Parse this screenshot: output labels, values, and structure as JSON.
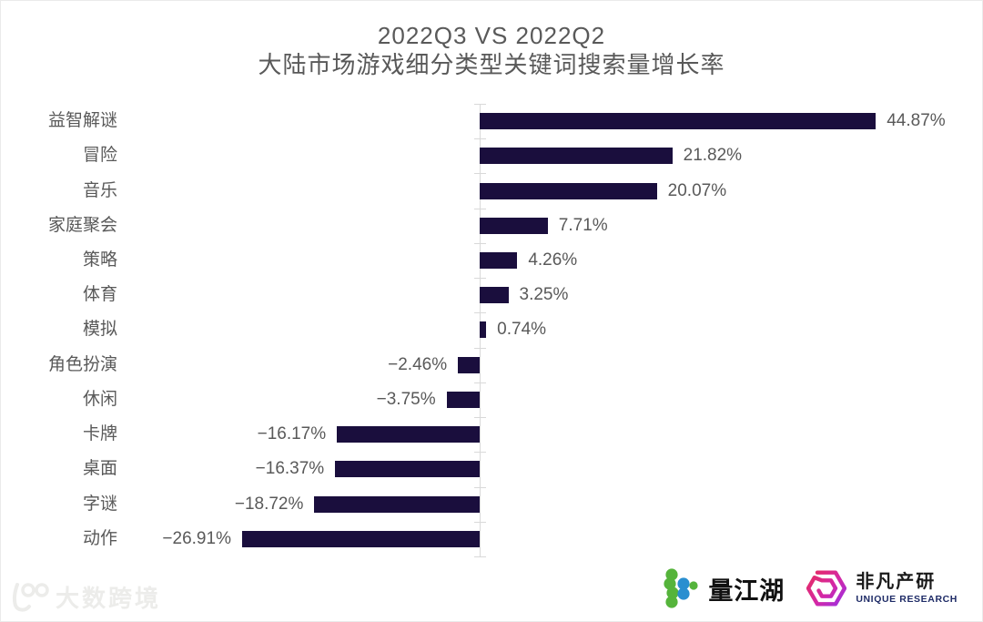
{
  "page": {
    "background": "#ffffff",
    "border_color": "#ebebeb"
  },
  "title": {
    "line1": "2022Q3 VS 2022Q2",
    "line2": "大陆市场游戏细分类型关键词搜索量增长率",
    "color": "#595959"
  },
  "chart_data": {
    "type": "bar",
    "orientation": "horizontal",
    "title": "2022Q3 VS 2022Q2 大陆市场游戏细分类型关键词搜索量增长率",
    "categories": [
      "益智解谜",
      "冒险",
      "音乐",
      "家庭聚会",
      "策略",
      "体育",
      "模拟",
      "角色扮演",
      "休闲",
      "卡牌",
      "桌面",
      "字谜",
      "动作"
    ],
    "values": [
      44.87,
      21.82,
      20.07,
      7.71,
      4.26,
      3.25,
      0.74,
      -2.46,
      -3.75,
      -16.17,
      -16.37,
      -18.72,
      -26.91
    ],
    "value_labels": [
      "44.87%",
      "21.82%",
      "20.07%",
      "7.71%",
      "4.26%",
      "3.25%",
      "0.74%",
      "−2.46%",
      "−3.75%",
      "−16.17%",
      "−16.37%",
      "−18.72%",
      "−26.91%"
    ],
    "value_suffix": "%",
    "bar_color": "#1a0e3d",
    "axis_color": "#d9d9d9",
    "text_color": "#595959",
    "xlim": [
      -30,
      48
    ],
    "grid": false,
    "legend": "none"
  },
  "footer": {
    "watermark": {
      "logo": "100",
      "text": "大数跨境",
      "color": "#ececea"
    },
    "brand1": {
      "name": "量江湖",
      "icon": "beads-logo-icon",
      "icon_green": "#55b43b",
      "icon_blue": "#2a8fd0"
    },
    "brand2": {
      "name": "非凡产研",
      "subtitle": "UNIQUE RESEARCH",
      "icon": "hex-spiral-logo-icon",
      "icon_gradient": [
        "#e92d55",
        "#d428a6",
        "#9031ef"
      ],
      "subtitle_color": "#1e2b66"
    }
  }
}
